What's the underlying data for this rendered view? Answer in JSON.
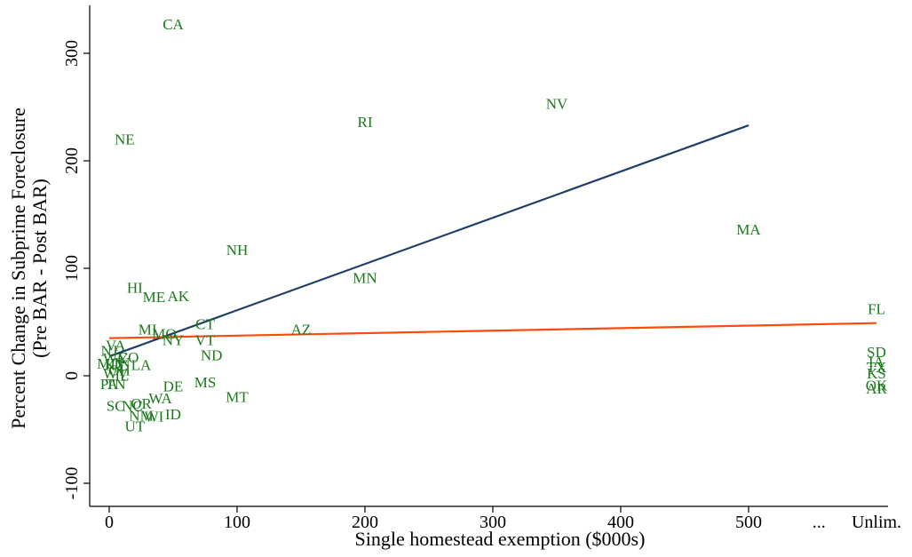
{
  "chart_data": {
    "type": "scatter",
    "title": "",
    "xlabel": "Single homestead exemption ($000s)",
    "ylabel_line1": "Percent Change in Subprime Foreclosure",
    "ylabel_line2": "(Pre BAR - Post BAR)",
    "xlim": [
      0,
      600
    ],
    "ylim": [
      -100,
      300
    ],
    "x_ticks": [
      {
        "value": 0,
        "label": "0"
      },
      {
        "value": 100,
        "label": "100"
      },
      {
        "value": 200,
        "label": "200"
      },
      {
        "value": 300,
        "label": "300"
      },
      {
        "value": 400,
        "label": "400"
      },
      {
        "value": 500,
        "label": "500"
      },
      {
        "value": 555,
        "label": "..."
      },
      {
        "value": 600,
        "label": "Unlim."
      }
    ],
    "y_ticks": [
      {
        "value": -100,
        "label": "-100"
      },
      {
        "value": 0,
        "label": "0"
      },
      {
        "value": 100,
        "label": "100"
      },
      {
        "value": 200,
        "label": "200"
      },
      {
        "value": 300,
        "label": "300"
      }
    ],
    "grid": false,
    "colors": {
      "points": "#1a7a1a",
      "fit_line_blue": "#1f3f66",
      "fit_line_orange": "#ff4a0a"
    },
    "series": [
      {
        "marker": "state-abbreviation",
        "points": [
          {
            "label": "CA",
            "x": 50,
            "y": 327
          },
          {
            "label": "NV",
            "x": 350,
            "y": 253
          },
          {
            "label": "RI",
            "x": 200,
            "y": 236
          },
          {
            "label": "NE",
            "x": 12,
            "y": 220
          },
          {
            "label": "MA",
            "x": 500,
            "y": 136
          },
          {
            "label": "NH",
            "x": 100,
            "y": 117
          },
          {
            "label": "MN",
            "x": 200,
            "y": 91
          },
          {
            "label": "HI",
            "x": 20,
            "y": 82
          },
          {
            "label": "ME",
            "x": 35,
            "y": 73
          },
          {
            "label": "AK",
            "x": 54,
            "y": 74
          },
          {
            "label": "FL",
            "x": 600,
            "y": 62
          },
          {
            "label": "CT",
            "x": 75,
            "y": 48
          },
          {
            "label": "AZ",
            "x": 150,
            "y": 43
          },
          {
            "label": "MI",
            "x": 30,
            "y": 43
          },
          {
            "label": "MO",
            "x": 43,
            "y": 39
          },
          {
            "label": "NY",
            "x": 50,
            "y": 33
          },
          {
            "label": "VT",
            "x": 75,
            "y": 33
          },
          {
            "label": "VA",
            "x": 5,
            "y": 28
          },
          {
            "label": "NJ",
            "x": 0,
            "y": 23
          },
          {
            "label": "ND",
            "x": 80,
            "y": 19
          },
          {
            "label": "SD",
            "x": 600,
            "y": 22
          },
          {
            "label": "IA",
            "x": 600,
            "y": 13
          },
          {
            "label": "KS",
            "x": 600,
            "y": 2
          },
          {
            "label": "TX",
            "x": 600,
            "y": 8
          },
          {
            "label": "OK",
            "x": 600,
            "y": -9
          },
          {
            "label": "AR",
            "x": 600,
            "y": -12
          },
          {
            "label": "CO",
            "x": 15,
            "y": 17
          },
          {
            "label": "MD",
            "x": 0,
            "y": 11
          },
          {
            "label": "LA",
            "x": 25,
            "y": 10
          },
          {
            "label": "WY",
            "x": 5,
            "y": 16
          },
          {
            "label": "KY",
            "x": 5,
            "y": 10
          },
          {
            "label": "IN",
            "x": 10,
            "y": 12
          },
          {
            "label": "OH",
            "x": 8,
            "y": 5
          },
          {
            "label": "WV",
            "x": 5,
            "y": 2
          },
          {
            "label": "IL",
            "x": 10,
            "y": 0
          },
          {
            "label": "DE",
            "x": 50,
            "y": -10
          },
          {
            "label": "MS",
            "x": 75,
            "y": -6
          },
          {
            "label": "PA",
            "x": 0,
            "y": -8
          },
          {
            "label": "TN",
            "x": 5,
            "y": -8
          },
          {
            "label": "MT",
            "x": 100,
            "y": -20
          },
          {
            "label": "WA",
            "x": 40,
            "y": -21
          },
          {
            "label": "SC",
            "x": 5,
            "y": -28
          },
          {
            "label": "NC",
            "x": 18,
            "y": -28
          },
          {
            "label": "OR",
            "x": 25,
            "y": -26
          },
          {
            "label": "NM",
            "x": 25,
            "y": -37
          },
          {
            "label": "WI",
            "x": 35,
            "y": -38
          },
          {
            "label": "ID",
            "x": 50,
            "y": -36
          },
          {
            "label": "UT",
            "x": 20,
            "y": -47
          }
        ]
      }
    ],
    "fit_lines": [
      {
        "color": "blue",
        "x": [
          0,
          500
        ],
        "y": [
          18,
          233
        ]
      },
      {
        "color": "orange",
        "x": [
          0,
          600
        ],
        "y": [
          35,
          49
        ]
      }
    ]
  }
}
